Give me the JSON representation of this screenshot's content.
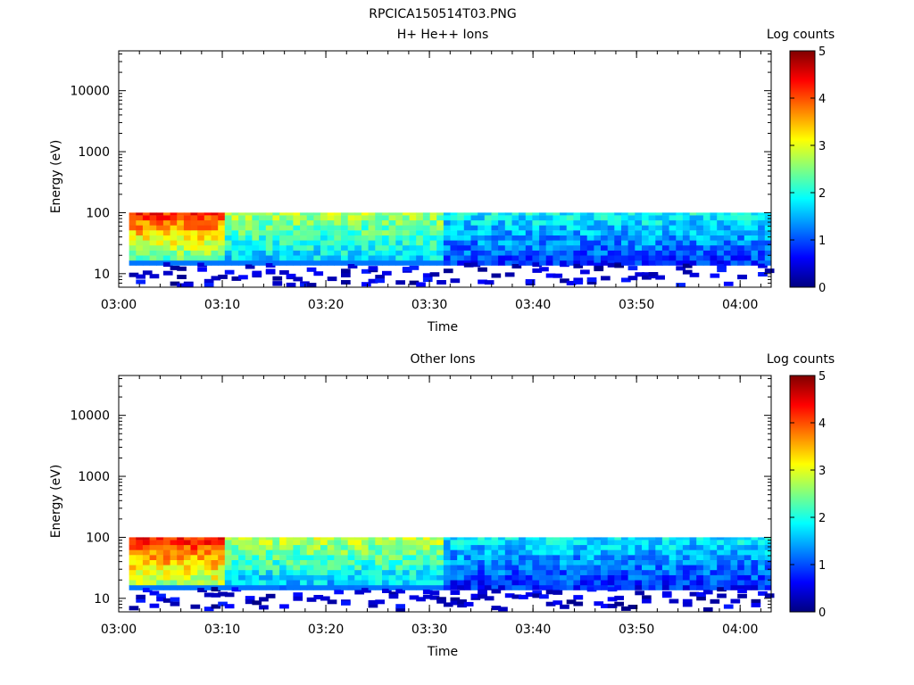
{
  "page_title": "RPCICA150514T03.PNG",
  "colormap": [
    "#000080",
    "#0000ff",
    "#0080ff",
    "#00ffff",
    "#80ff80",
    "#ffff00",
    "#ff8000",
    "#ff0000",
    "#800000"
  ],
  "chart_data": [
    {
      "type": "heatmap",
      "title": "H+ He++ Ions",
      "xlabel": "Time",
      "ylabel": "Energy (eV)",
      "yscale": "log",
      "ylim": [
        6,
        45000
      ],
      "xlim": [
        "03:00",
        "04:03"
      ],
      "xticks": [
        "03:00",
        "03:10",
        "03:20",
        "03:30",
        "03:40",
        "03:50",
        "04:00"
      ],
      "yticks": [
        "10",
        "100",
        "1000",
        "10000"
      ],
      "colorbar": {
        "label": "Log counts",
        "range": [
          0,
          5
        ],
        "ticks": [
          "0",
          "1",
          "2",
          "3",
          "4",
          "5"
        ]
      },
      "energy_band_eV": [
        15,
        100
      ],
      "segments": [
        {
          "start": "03:00",
          "end": "03:10",
          "log_counts_top": 4.2,
          "log_counts_bottom": 2.2
        },
        {
          "start": "03:10",
          "end": "03:31",
          "log_counts_top": 2.7,
          "log_counts_bottom": 1.6
        },
        {
          "start": "03:31",
          "end": "04:03",
          "log_counts_top": 1.9,
          "log_counts_bottom": 0.9
        }
      ]
    },
    {
      "type": "heatmap",
      "title": "Other Ions",
      "xlabel": "Time",
      "ylabel": "Energy (eV)",
      "yscale": "log",
      "ylim": [
        6,
        45000
      ],
      "xlim": [
        "03:00",
        "04:03"
      ],
      "xticks": [
        "03:00",
        "03:10",
        "03:20",
        "03:30",
        "03:40",
        "03:50",
        "04:00"
      ],
      "yticks": [
        "10",
        "100",
        "1000",
        "10000"
      ],
      "colorbar": {
        "label": "Log counts",
        "range": [
          0,
          5
        ],
        "ticks": [
          "0",
          "1",
          "2",
          "3",
          "4",
          "5"
        ]
      },
      "energy_band_eV": [
        15,
        100
      ],
      "segments": [
        {
          "start": "03:00",
          "end": "03:10",
          "log_counts_top": 4.3,
          "log_counts_bottom": 2.6
        },
        {
          "start": "03:10",
          "end": "03:31",
          "log_counts_top": 2.8,
          "log_counts_bottom": 1.5
        },
        {
          "start": "03:31",
          "end": "04:03",
          "log_counts_top": 1.8,
          "log_counts_bottom": 0.8
        }
      ]
    }
  ]
}
